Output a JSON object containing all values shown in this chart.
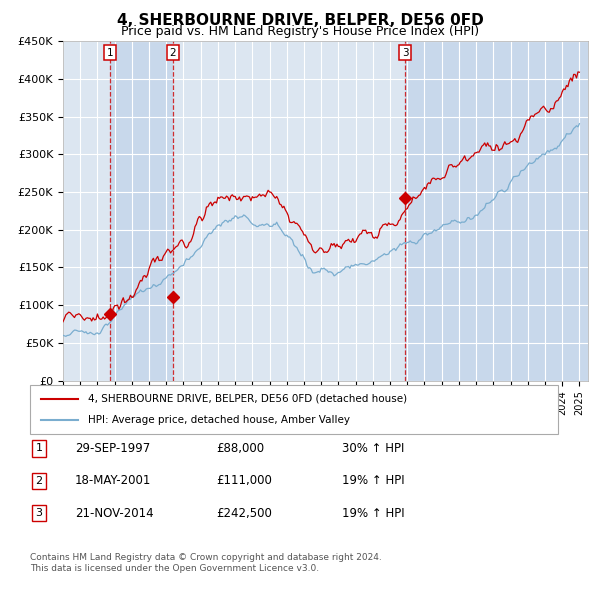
{
  "title": "4, SHERBOURNE DRIVE, BELPER, DE56 0FD",
  "subtitle": "Price paid vs. HM Land Registry's House Price Index (HPI)",
  "ylim": [
    0,
    450000
  ],
  "yticks": [
    0,
    50000,
    100000,
    150000,
    200000,
    250000,
    300000,
    350000,
    400000,
    450000
  ],
  "ytick_labels": [
    "£0",
    "£50K",
    "£100K",
    "£150K",
    "£200K",
    "£250K",
    "£300K",
    "£350K",
    "£400K",
    "£450K"
  ],
  "xlim": [
    1995.0,
    2025.5
  ],
  "sales": [
    {
      "date": 1997.75,
      "price": 88000,
      "label": "1",
      "date_str": "29-SEP-1997",
      "price_str": "£88,000",
      "hpi_str": "30% ↑ HPI"
    },
    {
      "date": 2001.38,
      "price": 111000,
      "label": "2",
      "date_str": "18-MAY-2001",
      "price_str": "£111,000",
      "hpi_str": "19% ↑ HPI"
    },
    {
      "date": 2014.89,
      "price": 242500,
      "label": "3",
      "date_str": "21-NOV-2014",
      "price_str": "£242,500",
      "hpi_str": "19% ↑ HPI"
    }
  ],
  "legend_line1": "4, SHERBOURNE DRIVE, BELPER, DE56 0FD (detached house)",
  "legend_line2": "HPI: Average price, detached house, Amber Valley",
  "footnote1": "Contains HM Land Registry data © Crown copyright and database right 2024.",
  "footnote2": "This data is licensed under the Open Government Licence v3.0.",
  "red_color": "#cc0000",
  "blue_color": "#7aadcf",
  "bg_color": "#dce6f1",
  "bg_alt_color": "#c8d8eb",
  "grid_color": "#ffffff",
  "title_fontsize": 11,
  "subtitle_fontsize": 9
}
